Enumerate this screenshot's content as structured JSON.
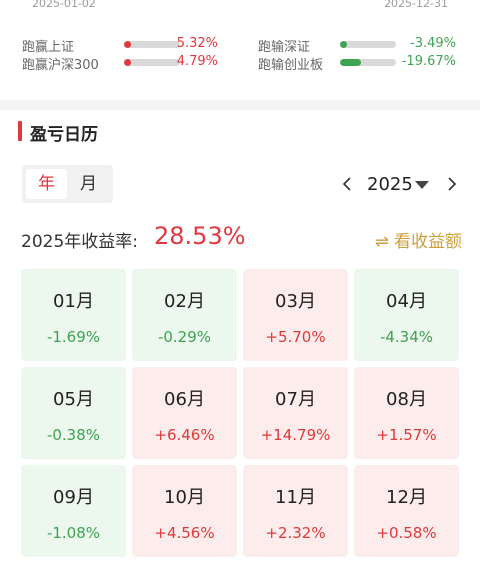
{
  "header": {
    "date_start": "2025-01-02",
    "date_end": "2025-12-31"
  },
  "comparisons": [
    {
      "label": "跑赢上证",
      "value": "5.32%",
      "fill": 0.08,
      "color": "#e0383e",
      "val_color": "#e0383e"
    },
    {
      "label": "跑赢沪深300",
      "value": "4.79%",
      "fill": 0.07,
      "color": "#e0383e",
      "val_color": "#e0383e"
    },
    {
      "label": "跑输深证",
      "value": "-3.49%",
      "fill": 0.07,
      "color": "#3ea352",
      "val_color": "#3ea352"
    },
    {
      "label": "跑输创业板",
      "value": "-19.67%",
      "fill": 0.38,
      "color": "#3ea352",
      "val_color": "#3ea352"
    }
  ],
  "calendar": {
    "title": "盈亏日历",
    "tabs": [
      {
        "label": "年",
        "active": true
      },
      {
        "label": "月",
        "active": false
      }
    ],
    "year": "2025",
    "rate_label": "2025年收益率:",
    "rate_value": "28.53%",
    "view_link": "看收益额",
    "swap_glyph": "⇌",
    "months": [
      {
        "name": "01月",
        "ret": "-1.69%",
        "sign": "neg"
      },
      {
        "name": "02月",
        "ret": "-0.29%",
        "sign": "neg"
      },
      {
        "name": "03月",
        "ret": "+5.70%",
        "sign": "pos"
      },
      {
        "name": "04月",
        "ret": "-4.34%",
        "sign": "neg"
      },
      {
        "name": "05月",
        "ret": "-0.38%",
        "sign": "neg"
      },
      {
        "name": "06月",
        "ret": "+6.46%",
        "sign": "pos"
      },
      {
        "name": "07月",
        "ret": "+14.79%",
        "sign": "pos"
      },
      {
        "name": "08月",
        "ret": "+1.57%",
        "sign": "pos"
      },
      {
        "name": "09月",
        "ret": "-1.08%",
        "sign": "neg"
      },
      {
        "name": "10月",
        "ret": "+4.56%",
        "sign": "pos"
      },
      {
        "name": "11月",
        "ret": "+2.32%",
        "sign": "pos"
      },
      {
        "name": "12月",
        "ret": "+0.58%",
        "sign": "pos"
      }
    ]
  },
  "colors": {
    "accent_red": "#e0383e",
    "gain_red": "#dd3a3a",
    "loss_green": "#3ea352",
    "link_gold": "#cf9f3a"
  }
}
